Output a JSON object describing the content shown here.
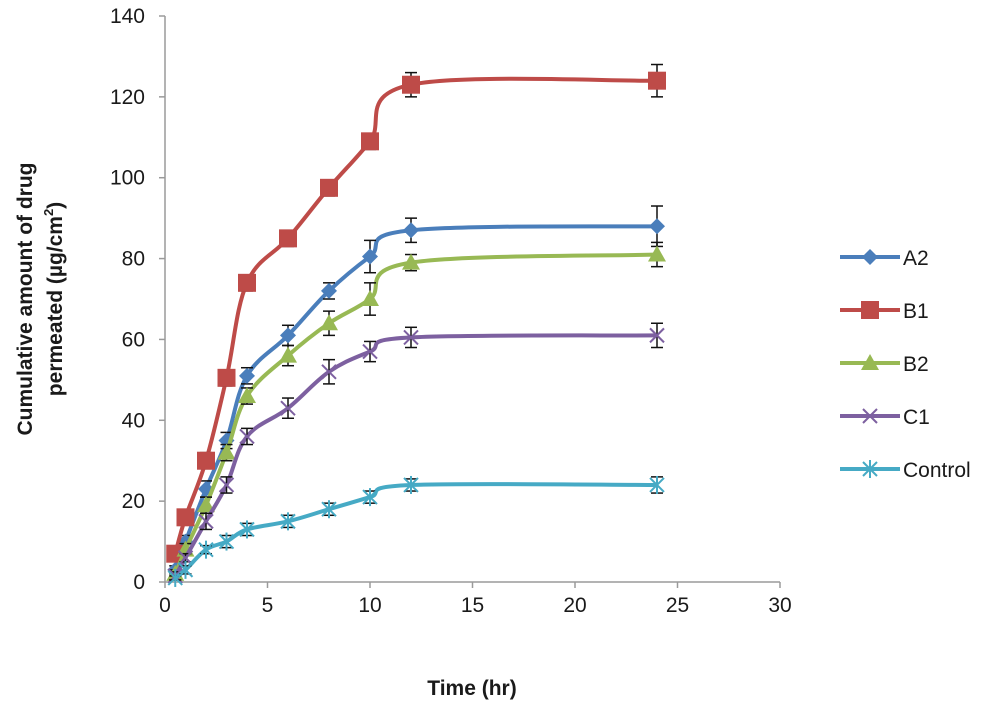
{
  "chart_data": {
    "type": "line",
    "xlabel": "Time (hr)",
    "ylabel_line1": "Cumulative amount of drug",
    "ylabel_line2_prefix": "permeated (µg/cm",
    "ylabel_line2_sup": "2",
    "ylabel_line2_suffix": ")",
    "xlim": [
      0,
      30
    ],
    "ylim": [
      0,
      140
    ],
    "xticks": [
      0,
      5,
      10,
      15,
      20,
      25,
      30
    ],
    "yticks": [
      0,
      20,
      40,
      60,
      80,
      100,
      120,
      140
    ],
    "grid": false,
    "legend_position": "right",
    "series": [
      {
        "name": "A2",
        "color": "#4a7ebb",
        "marker": "diamond",
        "x": [
          0.5,
          1,
          2,
          3,
          4,
          6,
          8,
          10,
          12,
          24
        ],
        "y": [
          3,
          10,
          23,
          35,
          51,
          61,
          72,
          80.5,
          87,
          88
        ],
        "err": [
          1,
          1.5,
          2,
          2,
          2,
          2.5,
          2,
          4,
          3,
          5
        ]
      },
      {
        "name": "B1",
        "color": "#be4b48",
        "marker": "square",
        "x": [
          0.5,
          1,
          2,
          3,
          4,
          6,
          8,
          10,
          12,
          24
        ],
        "y": [
          7,
          16,
          30,
          50.5,
          74,
          85,
          97.5,
          109,
          123,
          124
        ],
        "err": [
          1,
          1.5,
          2,
          2,
          2,
          2,
          2,
          2,
          3,
          4
        ]
      },
      {
        "name": "B2",
        "color": "#98b954",
        "marker": "triangle",
        "x": [
          0.5,
          1,
          2,
          3,
          4,
          6,
          8,
          10,
          12,
          24
        ],
        "y": [
          2,
          8,
          19,
          32,
          46,
          56,
          64,
          70,
          79,
          81
        ],
        "err": [
          1,
          1.5,
          2,
          2,
          2,
          2.5,
          3,
          4,
          2,
          3
        ]
      },
      {
        "name": "C1",
        "color": "#7d60a0",
        "marker": "x",
        "x": [
          0.5,
          1,
          2,
          3,
          4,
          6,
          8,
          10,
          12,
          24
        ],
        "y": [
          1.5,
          6,
          15,
          24,
          36,
          43,
          52,
          57,
          60.5,
          61
        ],
        "err": [
          1,
          1,
          2,
          2,
          2,
          2.5,
          3,
          2.5,
          2.5,
          3
        ]
      },
      {
        "name": "Control",
        "color": "#46aac5",
        "marker": "star",
        "x": [
          0.5,
          1,
          2,
          3,
          4,
          6,
          8,
          10,
          12,
          24
        ],
        "y": [
          1,
          3,
          8,
          10,
          13,
          15,
          18,
          21,
          24,
          24
        ],
        "err": [
          0.5,
          1,
          1,
          1.5,
          1.5,
          1.5,
          1.5,
          1.5,
          1.5,
          2
        ]
      }
    ]
  }
}
